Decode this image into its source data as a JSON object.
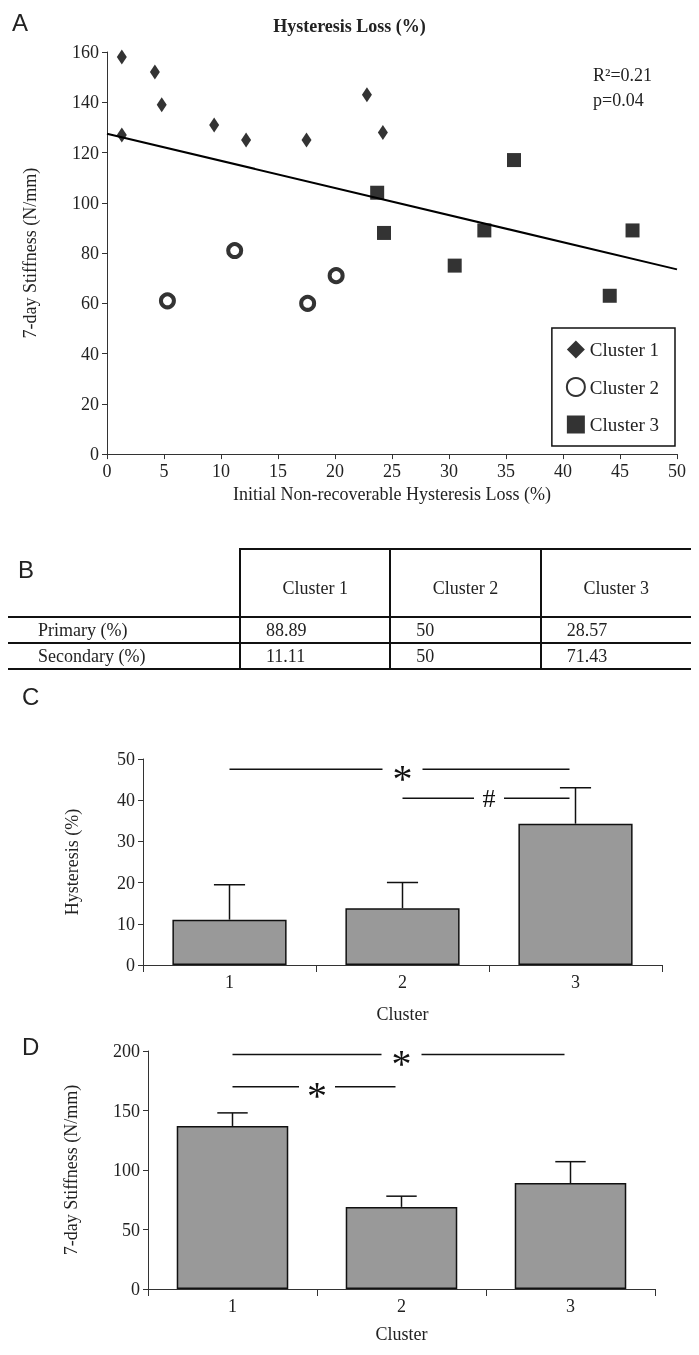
{
  "chart_data": [
    {
      "type": "scatter",
      "title": "Hysteresis Loss (%)",
      "xlabel": "Initial Non-recoverable Hysteresis Loss (%)",
      "ylabel": "7-day Stiffness (N/mm)",
      "xlim": [
        0,
        50
      ],
      "ylim": [
        0,
        160
      ],
      "xticks": [
        0,
        5,
        10,
        15,
        20,
        25,
        30,
        35,
        40,
        45,
        50
      ],
      "yticks": [
        0,
        20,
        40,
        60,
        80,
        100,
        120,
        140,
        160
      ],
      "legend": "bottom right",
      "annotations": [
        "A",
        "R²=0.21",
        "p=0.04"
      ],
      "series": [
        {
          "name": "Cluster 1",
          "color": "#000000",
          "marker": "diamond",
          "x": [
            1.3,
            4.2,
            4.8,
            1.3,
            9.4,
            12.2,
            17.5,
            22.8,
            24.2
          ],
          "values": [
            158,
            152,
            139,
            127,
            131,
            125,
            125,
            143,
            128
          ]
        },
        {
          "name": "Cluster 2",
          "color": "#000000",
          "marker": "circle",
          "x": [
            5.3,
            11.2,
            17.6,
            20.1
          ],
          "values": [
            61,
            81,
            60,
            71
          ]
        },
        {
          "name": "Cluster 3",
          "color": "#000000",
          "marker": "square",
          "x": [
            23.7,
            24.3,
            30.5,
            33.1,
            35.7,
            44.1,
            46.1
          ],
          "values": [
            104,
            88,
            75,
            89,
            117,
            63,
            89
          ]
        },
        {
          "type": "line",
          "color": "#000000",
          "marker": "none",
          "x": [
            0,
            50
          ],
          "values": [
            127.5,
            73.5
          ]
        }
      ]
    },
    {
      "type": "other",
      "categories": [
        "Cluster 1",
        "Cluster 2",
        "Cluster 3"
      ],
      "y_categories": [
        "Primary (%)",
        "Secondary (%)"
      ],
      "cell_labels": [
        [
          "88.89",
          "50",
          "28.57"
        ],
        [
          "11.11",
          "50",
          "71.43"
        ]
      ],
      "annotations": [
        "B"
      ]
    },
    {
      "type": "bar",
      "xlabel": "Cluster",
      "ylabel": "Hysteresis (%)",
      "categories": [
        "1",
        "2",
        "3"
      ],
      "values": [
        11,
        13.8,
        34.3
      ],
      "errors": [
        [
          11,
          19.5
        ],
        [
          13.8,
          20
        ],
        [
          34.3,
          43
        ]
      ],
      "color": "#999999",
      "ylim": [
        0,
        50
      ],
      "yticks": [
        0,
        10,
        20,
        30,
        40,
        50
      ],
      "annotations": [
        "C",
        "*",
        "#"
      ]
    },
    {
      "type": "bar",
      "xlabel": "Cluster",
      "ylabel": "7-day Stiffness (N/mm)",
      "categories": [
        "1",
        "2",
        "3"
      ],
      "values": [
        137,
        69,
        89
      ],
      "errors": [
        [
          137,
          148
        ],
        [
          69,
          78
        ],
        [
          89,
          107
        ]
      ],
      "color": "#999999",
      "ylim": [
        0,
        200
      ],
      "yticks": [
        0,
        50,
        100,
        150,
        200
      ],
      "annotations": [
        "D",
        "*",
        "*"
      ]
    }
  ]
}
